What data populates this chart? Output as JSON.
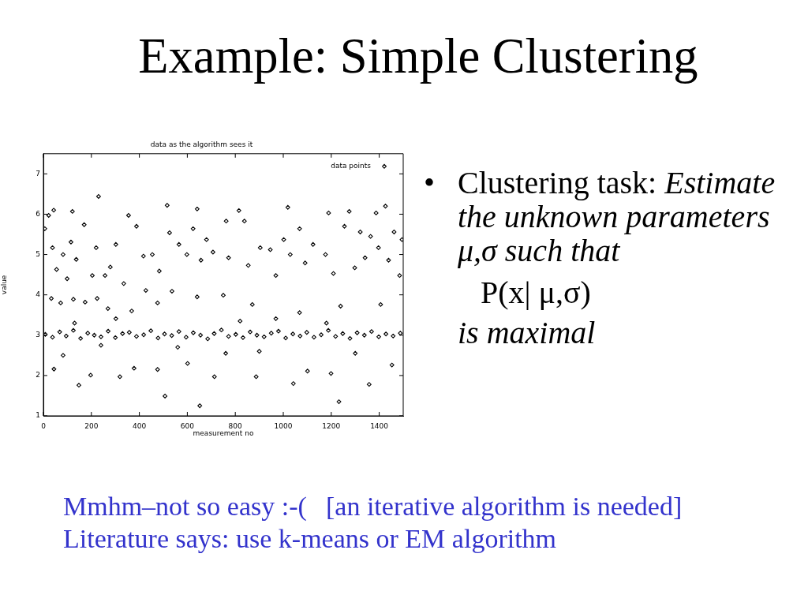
{
  "chart_data": {
    "type": "scatter",
    "title": "Example: Simple Clustering",
    "subtitle": "data as the algorithm sees it",
    "xlabel": "measurement no",
    "ylabel": "value",
    "annotations": [
      "•",
      "Clustering task: Estimate the unknown parameters μ,σ such that",
      "P(x| μ,σ)",
      "is maximal",
      "Mmhm–not so easy :-(\t[an iterative algorithm is needed]",
      "Literature says: use k-means or EM algorithm"
    ],
    "series": [
      {
        "name": "data points",
        "color": "#000000",
        "x": [
          8,
          38,
          68,
          95,
          125,
          155,
          185,
          212,
          240,
          270,
          300,
          330,
          358,
          388,
          418,
          448,
          478,
          505,
          535,
          565,
          595,
          625,
          655,
          685,
          712,
          742,
          772,
          802,
          832,
          862,
          890,
          920,
          950,
          980,
          1010,
          1040,
          1070,
          1098,
          1128,
          1158,
          1188,
          1218,
          1248,
          1278,
          1308,
          1338,
          1368,
          1398,
          1428,
          1458,
          1488,
          6,
          22,
          38,
          55,
          82,
          99,
          115,
          137,
          170,
          204,
          220,
          257,
          279,
          302,
          335,
          388,
          417,
          454,
          483,
          526,
          565,
          598,
          624,
          657,
          680,
          707,
          762,
          772,
          838,
          854,
          904,
          946,
          969,
          1002,
          1029,
          1068,
          1091,
          1124,
          1176,
          1209,
          1255,
          1298,
          1321,
          1341,
          1364,
          1397,
          1439,
          1462,
          1485,
          1495,
          43,
          121,
          230,
          355,
          516,
          641,
          815,
          1019,
          1189,
          1275,
          1387,
          1426,
          33,
          72,
          125,
          174,
          224,
          269,
          302,
          368,
          427,
          476,
          536,
          641,
          750,
          871,
          969,
          1068,
          1239,
          1406,
          148,
          507,
          652,
          1232,
          1358,
          44,
          82,
          197,
          319,
          378,
          476,
          601,
          713,
          887,
          1042,
          1101,
          1199,
          1453,
          240,
          560,
          760,
          900,
          1300,
          130,
          820,
          1180
        ],
        "values": [
          3.02,
          2.95,
          3.08,
          2.98,
          3.12,
          2.92,
          3.05,
          3,
          2.96,
          3.1,
          2.94,
          3.04,
          3.07,
          2.97,
          3.01,
          3.11,
          2.93,
          3.03,
          2.99,
          3.09,
          2.95,
          3.06,
          3,
          2.91,
          3.04,
          3.13,
          2.97,
          3.02,
          2.94,
          3.08,
          3,
          2.96,
          3.05,
          3.1,
          2.93,
          3.03,
          2.98,
          3.07,
          2.95,
          3.01,
          3.12,
          2.97,
          3.04,
          2.92,
          3.06,
          3,
          3.09,
          2.96,
          3.03,
          2.98,
          3.05,
          5.64,
          5.97,
          5.17,
          4.63,
          5,
          4.4,
          5.31,
          4.88,
          5.74,
          4.48,
          5.17,
          4.48,
          4.69,
          5.25,
          4.28,
          5.7,
          4.96,
          5,
          4.59,
          5.54,
          5.25,
          5,
          5.64,
          4.86,
          5.37,
          5.06,
          5.83,
          4.92,
          5.83,
          4.73,
          5.17,
          5.12,
          4.48,
          5.37,
          5,
          5.64,
          4.79,
          5.25,
          5,
          4.53,
          5.7,
          4.67,
          5.56,
          4.92,
          5.45,
          5.17,
          4.86,
          5.56,
          4.48,
          5.37,
          6.1,
          6.07,
          6.44,
          5.97,
          6.22,
          6.13,
          6.09,
          6.17,
          6.03,
          6.07,
          6.03,
          6.2,
          3.91,
          3.8,
          3.89,
          3.82,
          3.91,
          3.66,
          3.41,
          3.6,
          4.11,
          3.8,
          4.09,
          3.95,
          3.99,
          3.76,
          3.41,
          3.56,
          3.72,
          3.76,
          1.76,
          1.49,
          1.25,
          1.35,
          1.78,
          2.16,
          2.5,
          2.01,
          1.97,
          2.18,
          2.15,
          2.3,
          1.97,
          1.97,
          1.8,
          2.11,
          2.05,
          2.26,
          2.75,
          2.7,
          2.55,
          2.6,
          2.55,
          3.3,
          3.35,
          3.3
        ]
      }
    ],
    "xlim": [
      0,
      1500
    ],
    "xticks": [
      0,
      200,
      400,
      600,
      800,
      1000,
      1200,
      1400
    ],
    "ylim": [
      1,
      7.5
    ],
    "yticks": [
      1,
      2,
      3,
      4,
      5,
      6,
      7
    ],
    "legend": "top right",
    "marker": "diamond"
  }
}
